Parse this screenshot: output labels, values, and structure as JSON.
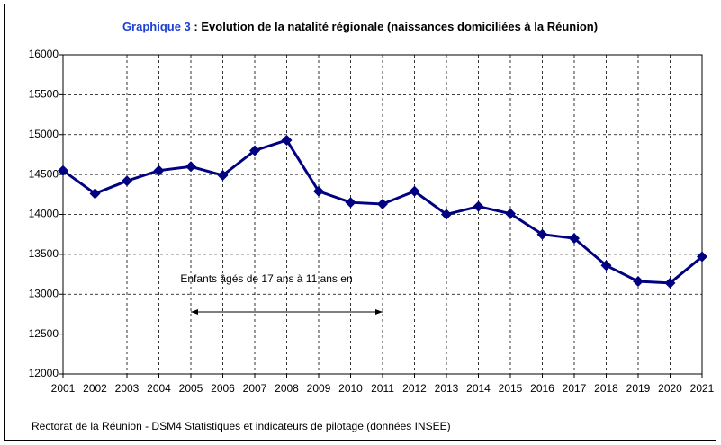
{
  "chart_data": {
    "type": "line",
    "title_label": "Graphique 3",
    "title": ": Evolution de la natalité régionale (naissances domiciliées à la Réunion)",
    "annotation": "Enfants âgés de 17 ans à 11 ans en",
    "source": "Rectorat de la Réunion - DSM4 Statistiques et indicateurs de pilotage (données INSEE)",
    "x": [
      2001,
      2002,
      2003,
      2004,
      2005,
      2006,
      2007,
      2008,
      2009,
      2010,
      2011,
      2012,
      2013,
      2014,
      2015,
      2016,
      2017,
      2018,
      2019,
      2020,
      2021
    ],
    "series": [
      {
        "name": "Naissances",
        "color": "#000080",
        "values": [
          14550,
          14260,
          14420,
          14550,
          14600,
          14490,
          14800,
          14930,
          14290,
          14150,
          14130,
          14290,
          14000,
          14100,
          14010,
          13750,
          13700,
          13360,
          13160,
          13140,
          13470
        ]
      }
    ],
    "xlim": [
      2001,
      2021
    ],
    "xticks": [
      2001,
      2002,
      2003,
      2004,
      2005,
      2006,
      2007,
      2008,
      2009,
      2010,
      2011,
      2012,
      2013,
      2014,
      2015,
      2016,
      2017,
      2018,
      2019,
      2020,
      2021
    ],
    "ylim": [
      12000,
      16000
    ],
    "yticks": [
      12000,
      12500,
      13000,
      13500,
      14000,
      14500,
      15000,
      15500,
      16000
    ],
    "grid": true
  }
}
